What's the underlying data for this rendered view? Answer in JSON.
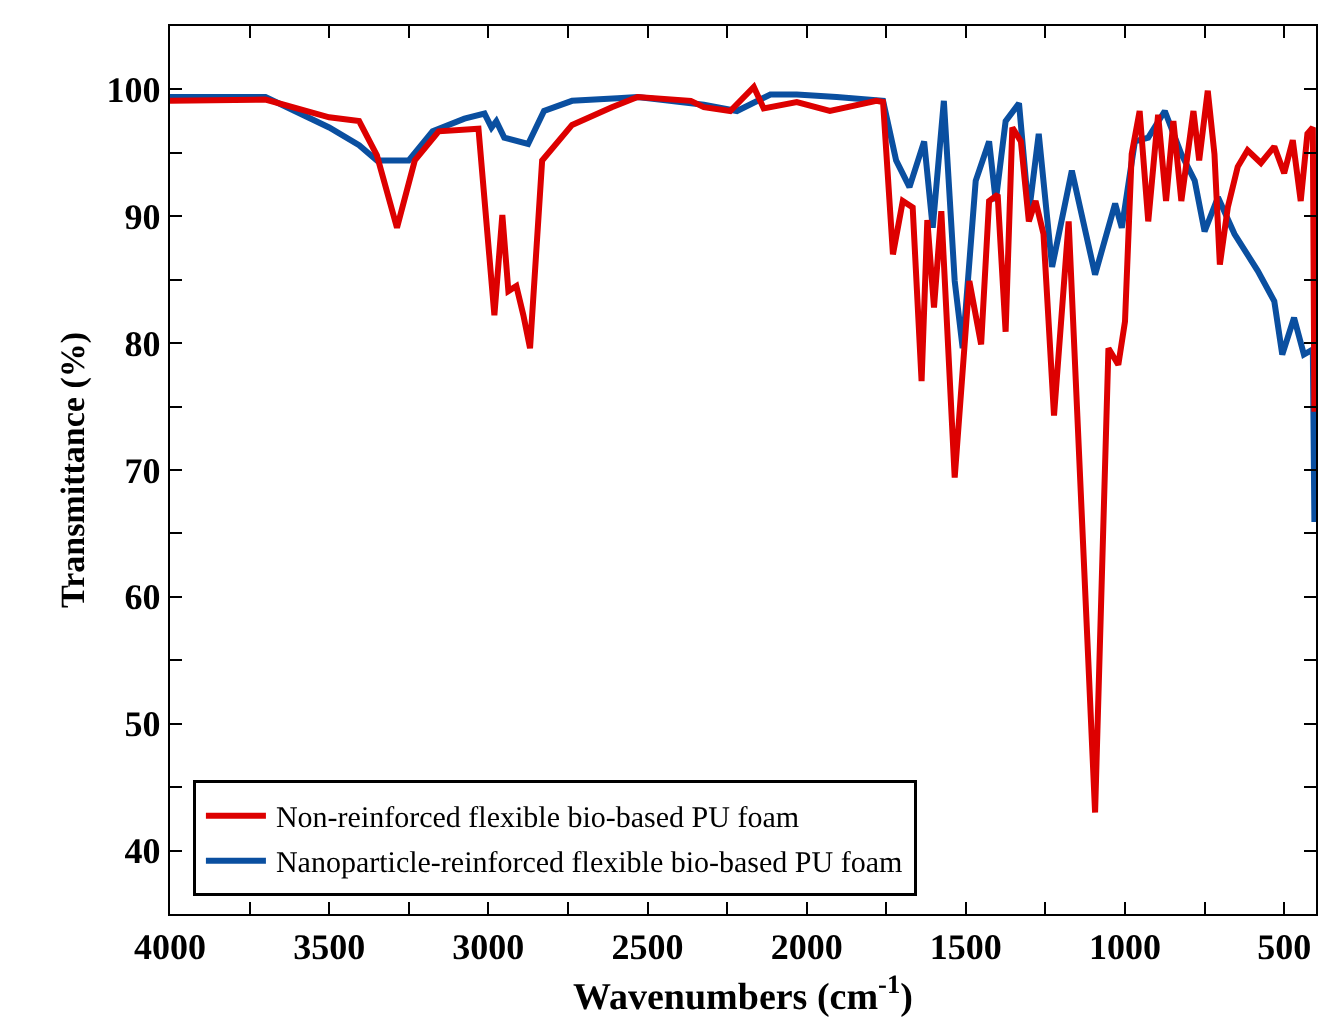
{
  "chart_data": {
    "type": "line",
    "xlabel": "Wavenumbers (cm$^{-1}$)",
    "ylabel": "Transmittance (%)",
    "xlim": [
      4000,
      400
    ],
    "ylim": [
      35,
      105
    ],
    "xticks": [
      4000,
      {
        "value": 3750,
        "label": null
      },
      3500,
      {
        "value": 3250,
        "label": null
      },
      3000,
      {
        "value": 2750,
        "label": null
      },
      2500,
      {
        "value": 2250,
        "label": null
      },
      2000,
      {
        "value": 1750,
        "label": null
      },
      1500,
      {
        "value": 1250,
        "label": null
      },
      1000,
      {
        "value": 750,
        "label": null
      },
      500
    ],
    "yticks": [
      40,
      {
        "value": 45,
        "label": null
      },
      50,
      {
        "value": 55,
        "label": null
      },
      60,
      {
        "value": 65,
        "label": null
      },
      70,
      {
        "value": 75,
        "label": null
      },
      80,
      {
        "value": 85,
        "label": null
      },
      90,
      {
        "value": 95,
        "label": null
      },
      100
    ],
    "legend": "bottom left",
    "marker": "none",
    "line_style": "solid",
    "series": [
      {
        "name": "Non-reinforced flexible bio-based PU foam",
        "color": "#dd0000",
        "x": [
          4000,
          3700,
          3500,
          3406,
          3350,
          3287,
          3231,
          3156,
          3031,
          2981,
          2956,
          2937,
          2912,
          2890,
          2869,
          2831,
          2737,
          2612,
          2531,
          2364,
          2323,
          2240,
          2166,
          2135,
          2031,
          1927,
          1781,
          1760,
          1729,
          1698,
          1667,
          1639,
          1621,
          1600,
          1577,
          1535,
          1489,
          1452,
          1427,
          1400,
          1375,
          1354,
          1327,
          1302,
          1281,
          1256,
          1223,
          1177,
          1094,
          1052,
          1021,
          1000,
          979,
          954,
          927,
          896,
          871,
          848,
          823,
          785,
          767,
          740,
          719,
          702,
          677,
          646,
          615,
          573,
          531,
          500,
          473,
          448,
          427,
          410,
          405
        ],
        "values": [
          99.1,
          99.2,
          97.8,
          97.5,
          94.8,
          89.1,
          94.4,
          96.7,
          96.9,
          82.2,
          90.1,
          84.1,
          84.5,
          82.2,
          79.6,
          94.4,
          97.2,
          98.6,
          99.4,
          99.1,
          98.6,
          98.3,
          100.2,
          98.5,
          99.0,
          98.3,
          99.1,
          99.0,
          87.0,
          91.2,
          90.7,
          77.0,
          89.7,
          82.8,
          90.4,
          69.4,
          84.9,
          79.9,
          91.2,
          91.7,
          80.9,
          97.0,
          95.9,
          89.6,
          91.2,
          88.6,
          74.3,
          89.6,
          43.0,
          79.6,
          78.3,
          81.7,
          94.9,
          98.3,
          89.6,
          98.0,
          91.2,
          97.5,
          91.2,
          98.3,
          94.4,
          99.9,
          94.9,
          86.2,
          90.7,
          93.9,
          95.2,
          94.2,
          95.5,
          93.4,
          96.0,
          91.2,
          96.5,
          97.0,
          74.6
        ]
      },
      {
        "name": "Nanoparticle-reinforced flexible bio-based PU foam",
        "color": "#0a4fa0",
        "x": [
          4000,
          3700,
          3500,
          3406,
          3350,
          3250,
          3175,
          3075,
          3012,
          2990,
          2975,
          2950,
          2875,
          2825,
          2737,
          2594,
          2531,
          2323,
          2219,
          2114,
          2031,
          1906,
          1760,
          1719,
          1677,
          1631,
          1604,
          1569,
          1535,
          1510,
          1469,
          1427,
          1406,
          1375,
          1333,
          1302,
          1271,
          1229,
          1167,
          1094,
          1031,
          1010,
          969,
          927,
          875,
          823,
          781,
          750,
          708,
          656,
          583,
          531,
          506,
          469,
          438,
          410,
          405
        ],
        "values": [
          99.4,
          99.4,
          97.0,
          95.6,
          94.4,
          94.4,
          96.7,
          97.7,
          98.1,
          97.0,
          97.5,
          96.2,
          95.7,
          98.3,
          99.1,
          99.3,
          99.4,
          98.8,
          98.3,
          99.6,
          99.6,
          99.4,
          99.1,
          94.4,
          92.3,
          95.9,
          89.1,
          99.1,
          84.9,
          79.6,
          92.8,
          95.9,
          91.2,
          97.5,
          98.9,
          90.2,
          96.5,
          86.0,
          93.6,
          85.4,
          91.0,
          89.1,
          95.9,
          96.2,
          98.3,
          94.9,
          92.8,
          88.8,
          91.5,
          88.6,
          85.7,
          83.3,
          79.1,
          82.0,
          79.1,
          79.5,
          65.9
        ]
      }
    ]
  }
}
